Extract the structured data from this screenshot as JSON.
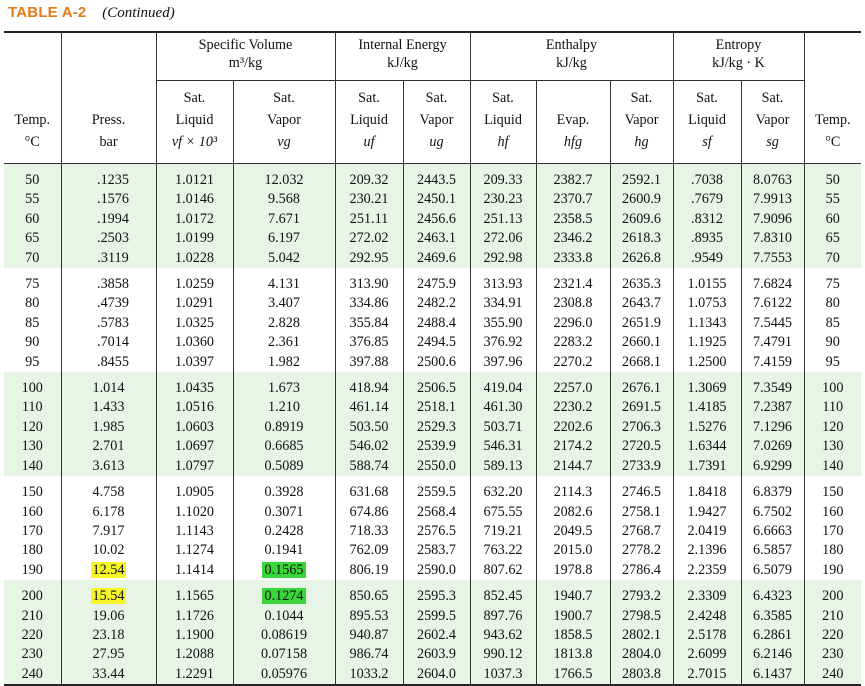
{
  "caption": {
    "table_no": "TABLE A-2",
    "note": "(Continued)"
  },
  "headers": {
    "groups": {
      "specific_volume": [
        "Specific Volume",
        "m³/kg"
      ],
      "internal_energy": [
        "Internal Energy",
        "kJ/kg"
      ],
      "enthalpy": [
        "Enthalpy",
        "kJ/kg"
      ],
      "entropy": [
        "Entropy",
        "kJ/kg · K"
      ]
    },
    "columns": [
      [
        "Temp.",
        "°C"
      ],
      [
        "Press.",
        "bar"
      ],
      [
        "Sat.",
        "Liquid",
        "vf × 10³"
      ],
      [
        "Sat.",
        "Vapor",
        "vg"
      ],
      [
        "Sat.",
        "Liquid",
        "uf"
      ],
      [
        "Sat.",
        "Vapor",
        "ug"
      ],
      [
        "Sat.",
        "Liquid",
        "hf"
      ],
      [
        "Evap.",
        "hfg"
      ],
      [
        "Sat.",
        "Vapor",
        "hg"
      ],
      [
        "Sat.",
        "Liquid",
        "sf"
      ],
      [
        "Sat.",
        "Vapor",
        "sg"
      ],
      [
        "Temp.",
        "°C"
      ]
    ]
  },
  "groups": [
    {
      "shade": "#e6f5e6",
      "rows": [
        [
          "50",
          ".1235",
          "1.0121",
          "12.032",
          "209.32",
          "2443.5",
          "209.33",
          "2382.7",
          "2592.1",
          ".7038",
          "8.0763",
          "50"
        ],
        [
          "55",
          ".1576",
          "1.0146",
          "9.568",
          "230.21",
          "2450.1",
          "230.23",
          "2370.7",
          "2600.9",
          ".7679",
          "7.9913",
          "55"
        ],
        [
          "60",
          ".1994",
          "1.0172",
          "7.671",
          "251.11",
          "2456.6",
          "251.13",
          "2358.5",
          "2609.6",
          ".8312",
          "7.9096",
          "60"
        ],
        [
          "65",
          ".2503",
          "1.0199",
          "6.197",
          "272.02",
          "2463.1",
          "272.06",
          "2346.2",
          "2618.3",
          ".8935",
          "7.8310",
          "65"
        ],
        [
          "70",
          ".3119",
          "1.0228",
          "5.042",
          "292.95",
          "2469.6",
          "292.98",
          "2333.8",
          "2626.8",
          ".9549",
          "7.7553",
          "70"
        ]
      ]
    },
    {
      "shade": "#ffffff",
      "rows": [
        [
          "75",
          ".3858",
          "1.0259",
          "4.131",
          "313.90",
          "2475.9",
          "313.93",
          "2321.4",
          "2635.3",
          "1.0155",
          "7.6824",
          "75"
        ],
        [
          "80",
          ".4739",
          "1.0291",
          "3.407",
          "334.86",
          "2482.2",
          "334.91",
          "2308.8",
          "2643.7",
          "1.0753",
          "7.6122",
          "80"
        ],
        [
          "85",
          ".5783",
          "1.0325",
          "2.828",
          "355.84",
          "2488.4",
          "355.90",
          "2296.0",
          "2651.9",
          "1.1343",
          "7.5445",
          "85"
        ],
        [
          "90",
          ".7014",
          "1.0360",
          "2.361",
          "376.85",
          "2494.5",
          "376.92",
          "2283.2",
          "2660.1",
          "1.1925",
          "7.4791",
          "90"
        ],
        [
          "95",
          ".8455",
          "1.0397",
          "1.982",
          "397.88",
          "2500.6",
          "397.96",
          "2270.2",
          "2668.1",
          "1.2500",
          "7.4159",
          "95"
        ]
      ]
    },
    {
      "shade": "#e6f5e6",
      "rows": [
        [
          "100",
          "1.014",
          "1.0435",
          "1.673",
          "418.94",
          "2506.5",
          "419.04",
          "2257.0",
          "2676.1",
          "1.3069",
          "7.3549",
          "100"
        ],
        [
          "110",
          "1.433",
          "1.0516",
          "1.210",
          "461.14",
          "2518.1",
          "461.30",
          "2230.2",
          "2691.5",
          "1.4185",
          "7.2387",
          "110"
        ],
        [
          "120",
          "1.985",
          "1.0603",
          "0.8919",
          "503.50",
          "2529.3",
          "503.71",
          "2202.6",
          "2706.3",
          "1.5276",
          "7.1296",
          "120"
        ],
        [
          "130",
          "2.701",
          "1.0697",
          "0.6685",
          "546.02",
          "2539.9",
          "546.31",
          "2174.2",
          "2720.5",
          "1.6344",
          "7.0269",
          "130"
        ],
        [
          "140",
          "3.613",
          "1.0797",
          "0.5089",
          "588.74",
          "2550.0",
          "589.13",
          "2144.7",
          "2733.9",
          "1.7391",
          "6.9299",
          "140"
        ]
      ]
    },
    {
      "shade": "#ffffff",
      "rows": [
        [
          "150",
          "4.758",
          "1.0905",
          "0.3928",
          "631.68",
          "2559.5",
          "632.20",
          "2114.3",
          "2746.5",
          "1.8418",
          "6.8379",
          "150"
        ],
        [
          "160",
          "6.178",
          "1.1020",
          "0.3071",
          "674.86",
          "2568.4",
          "675.55",
          "2082.6",
          "2758.1",
          "1.9427",
          "6.7502",
          "160"
        ],
        [
          "170",
          "7.917",
          "1.1143",
          "0.2428",
          "718.33",
          "2576.5",
          "719.21",
          "2049.5",
          "2768.7",
          "2.0419",
          "6.6663",
          "170"
        ],
        [
          "180",
          "10.02",
          "1.1274",
          "0.1941",
          "762.09",
          "2583.7",
          "763.22",
          "2015.0",
          "2778.2",
          "2.1396",
          "6.5857",
          "180"
        ],
        [
          "190",
          "12.54",
          "1.1414",
          "0.1565",
          "806.19",
          "2590.0",
          "807.62",
          "1978.8",
          "2786.4",
          "2.2359",
          "6.5079",
          "190"
        ]
      ]
    },
    {
      "shade": "#e6f5e6",
      "rows": [
        [
          "200",
          "15.54",
          "1.1565",
          "0.1274",
          "850.65",
          "2595.3",
          "852.45",
          "1940.7",
          "2793.2",
          "2.3309",
          "6.4323",
          "200"
        ],
        [
          "210",
          "19.06",
          "1.1726",
          "0.1044",
          "895.53",
          "2599.5",
          "897.76",
          "1900.7",
          "2798.5",
          "2.4248",
          "6.3585",
          "210"
        ],
        [
          "220",
          "23.18",
          "1.1900",
          "0.08619",
          "940.87",
          "2602.4",
          "943.62",
          "1858.5",
          "2802.1",
          "2.5178",
          "6.2861",
          "220"
        ],
        [
          "230",
          "27.95",
          "1.2088",
          "0.07158",
          "986.74",
          "2603.9",
          "990.12",
          "1813.8",
          "2804.0",
          "2.6099",
          "6.2146",
          "230"
        ],
        [
          "240",
          "33.44",
          "1.2291",
          "0.05976",
          "1033.2",
          "2604.0",
          "1037.3",
          "1766.5",
          "2803.8",
          "2.7015",
          "6.1437",
          "240"
        ]
      ]
    }
  ],
  "highlights": {
    "yellow": "#f6f62a",
    "green": "#39d639",
    "cells": [
      {
        "group": 3,
        "row": 4,
        "col": 1,
        "color": "yellow"
      },
      {
        "group": 3,
        "row": 4,
        "col": 3,
        "color": "green"
      },
      {
        "group": 4,
        "row": 0,
        "col": 1,
        "color": "yellow"
      },
      {
        "group": 4,
        "row": 0,
        "col": 3,
        "color": "green"
      }
    ]
  }
}
